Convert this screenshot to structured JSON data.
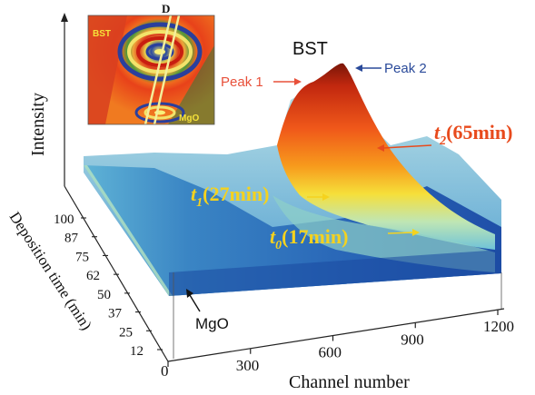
{
  "chart_data": {
    "type": "surface",
    "axes": {
      "z_label": "Intensity",
      "x_label": "Channel number",
      "y_label": "Deposition time (min)",
      "x_ticks": [
        "0",
        "300",
        "600",
        "900",
        "1200"
      ],
      "y_ticks": [
        "12",
        "25",
        "37",
        "50",
        "62",
        "75",
        "87",
        "100"
      ]
    },
    "annotations": {
      "material_peak": "BST",
      "peak1": "Peak 1",
      "peak2": "Peak 2",
      "substrate": "MgO",
      "t2_main": "t",
      "t2_sub": "2",
      "t2_rest": "(65min)",
      "t1_main": "t",
      "t1_sub": "1",
      "t1_rest": "(27min)",
      "t0_main": "t",
      "t0_sub": "0",
      "t0_rest": "(17min)"
    },
    "inset": {
      "label_top_left": "BST",
      "label_bottom": "MgO",
      "label_line": "D"
    },
    "colors": {
      "peak1": "#e8503a",
      "peak2": "#2a4a9a",
      "t2": "#e84a1c",
      "t1": "#f5d21e",
      "t0": "#f5d21e",
      "surface_low": "#1f4fa8",
      "surface_mid": "#6fc3d8",
      "surface_high": "#8b1a0a"
    }
  }
}
